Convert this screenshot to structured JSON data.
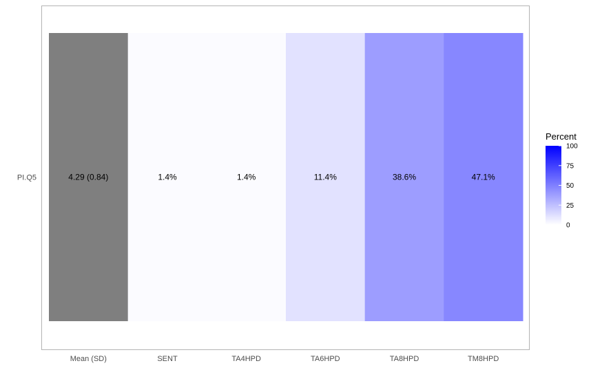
{
  "chart_data": {
    "type": "heatmap",
    "title": "",
    "xlabel": "",
    "ylabel": "",
    "rows": [
      "PI.Q5"
    ],
    "columns": [
      "Mean (SD)",
      "SENT",
      "TA4HPD",
      "TA6HPD",
      "TA8HPD",
      "TM8HPD"
    ],
    "cells": [
      {
        "row": "PI.Q5",
        "column": "Mean (SD)",
        "label": "4.29 (0.84)",
        "value": null
      },
      {
        "row": "PI.Q5",
        "column": "SENT",
        "label": "1.4%",
        "value": 1.4
      },
      {
        "row": "PI.Q5",
        "column": "TA4HPD",
        "label": "1.4%",
        "value": 1.4
      },
      {
        "row": "PI.Q5",
        "column": "TA6HPD",
        "label": "11.4%",
        "value": 11.4
      },
      {
        "row": "PI.Q5",
        "column": "TA8HPD",
        "label": "38.6%",
        "value": 38.6
      },
      {
        "row": "PI.Q5",
        "column": "TM8HPD",
        "label": "47.1%",
        "value": 47.1
      }
    ],
    "legend": {
      "title": "Percent",
      "ticks": [
        "0",
        "25",
        "50",
        "75",
        "100"
      ],
      "range": [
        0,
        100
      ],
      "position": "right"
    },
    "colors": {
      "low": "#ffffff",
      "high": "#0000ff",
      "na_fill": "#7f7f7f",
      "panel_border": "#b3b3b3"
    }
  }
}
